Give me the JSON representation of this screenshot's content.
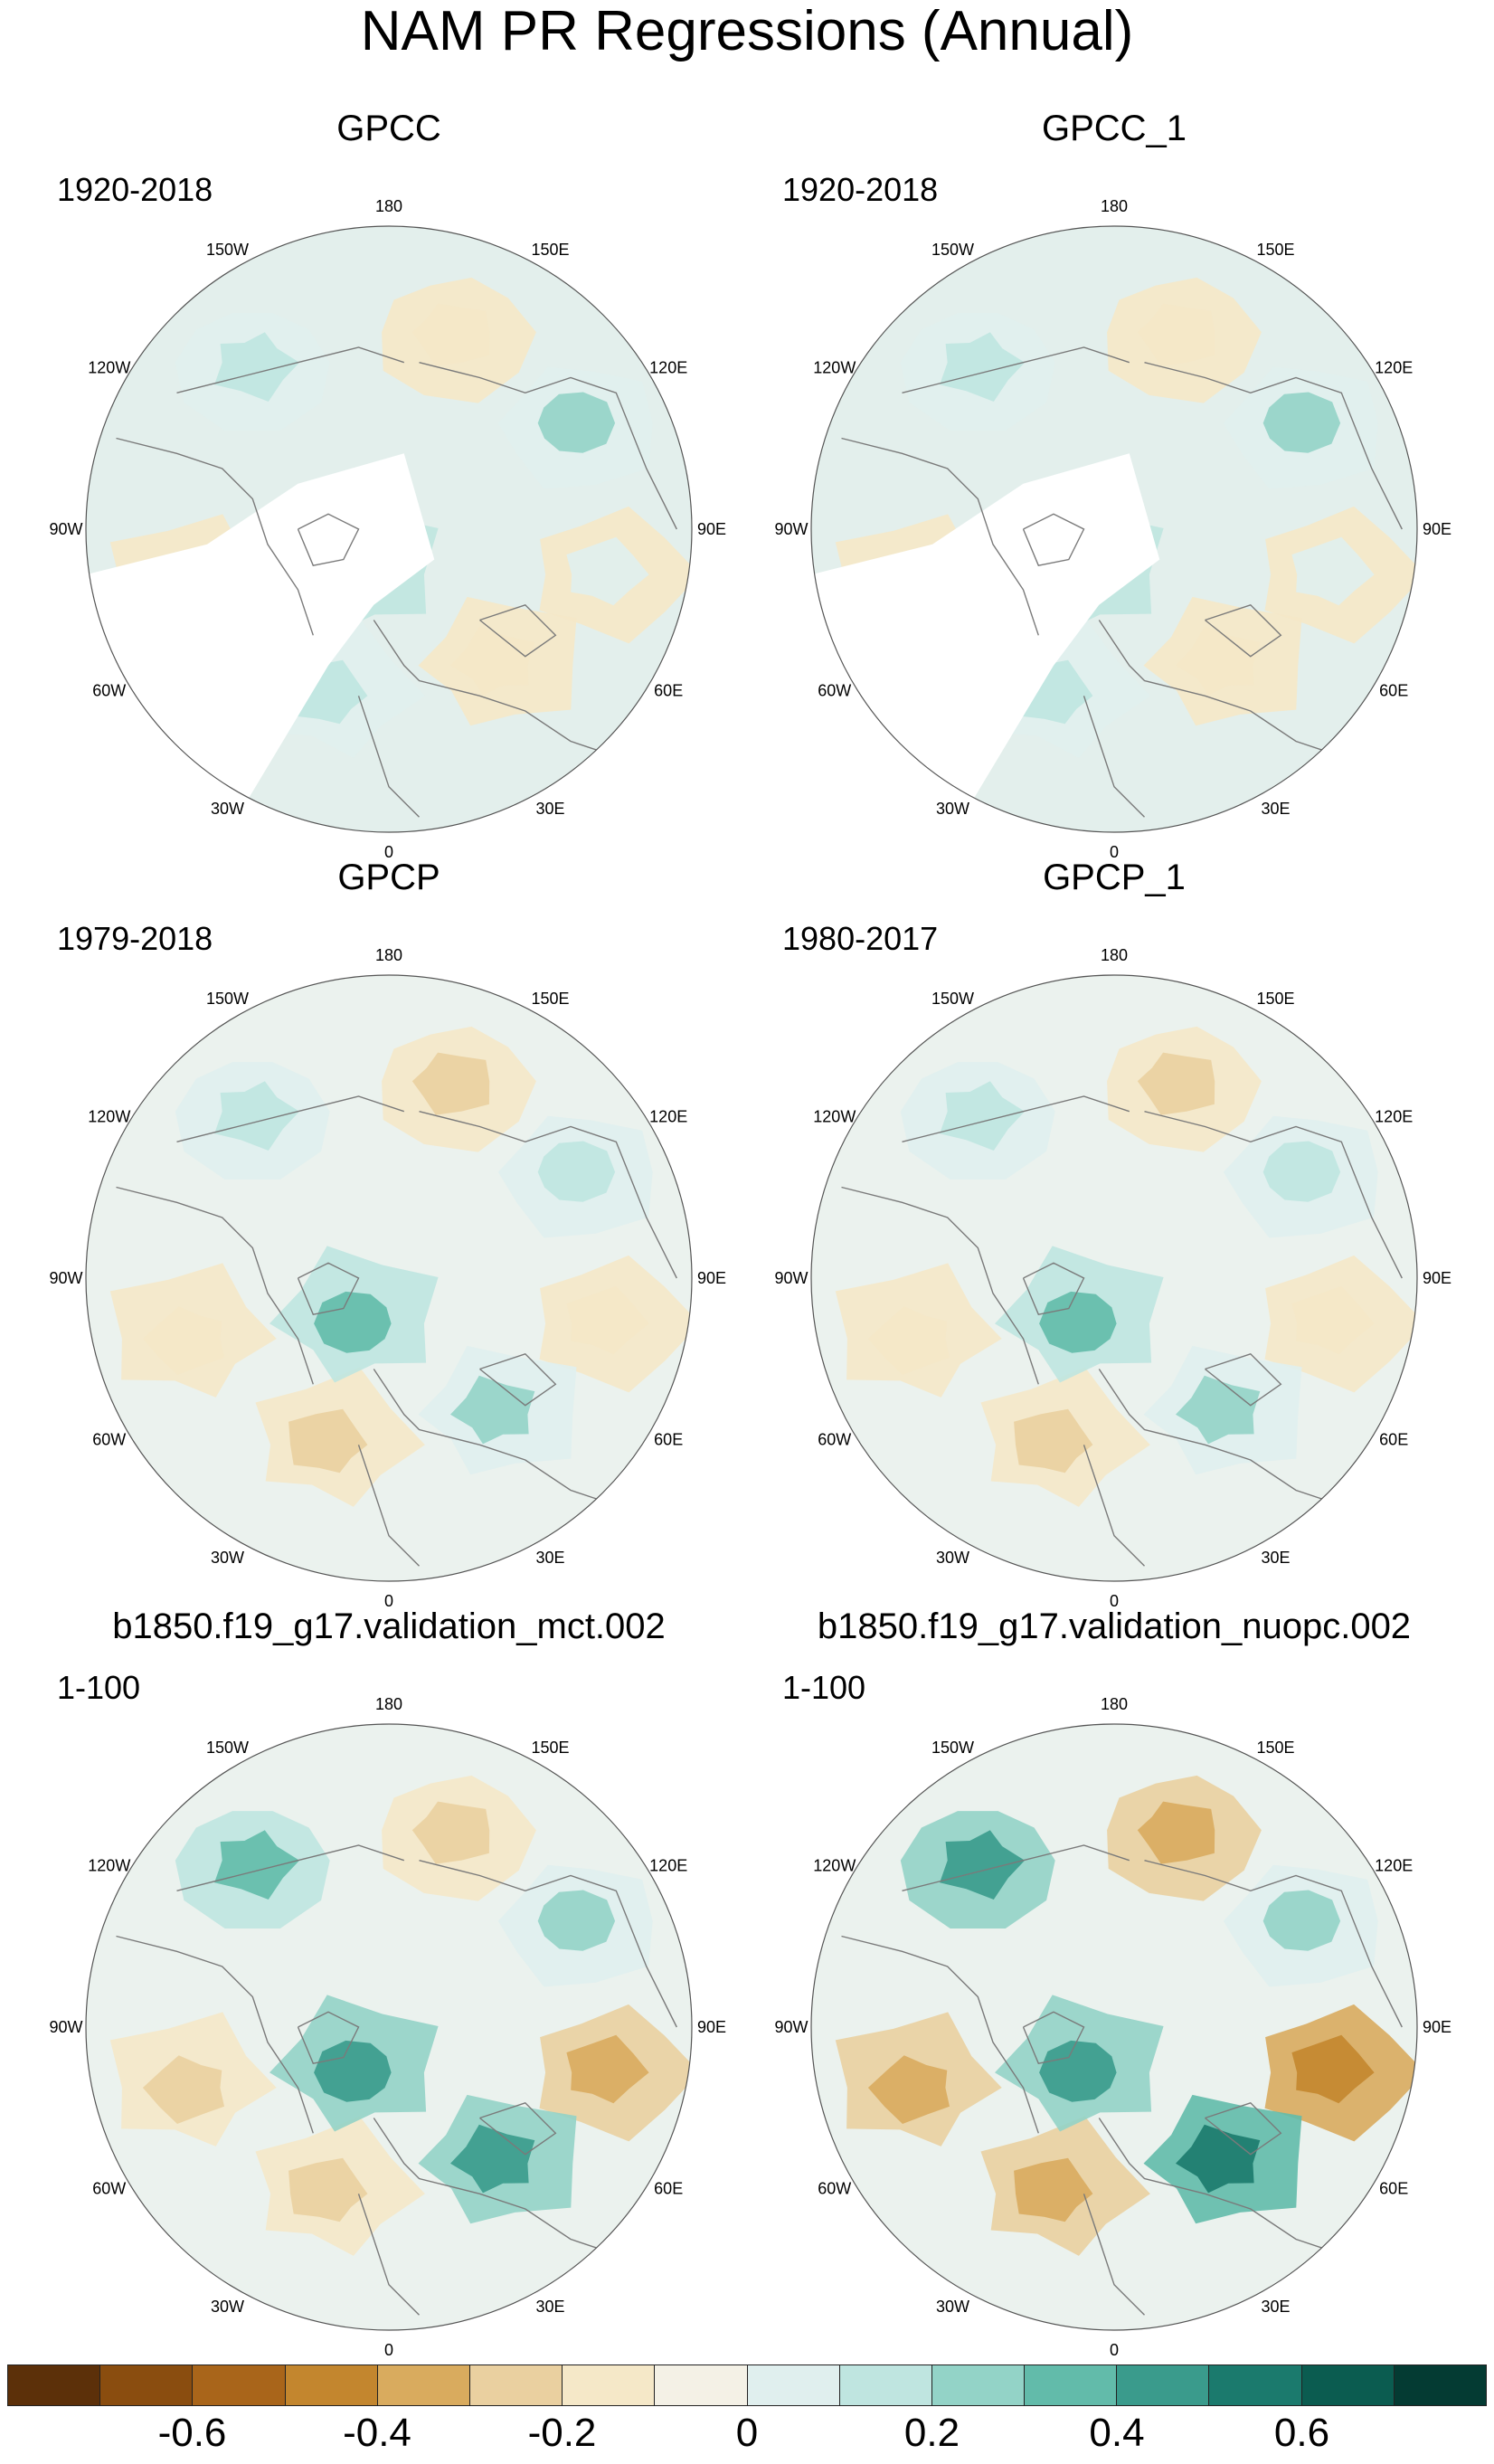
{
  "title": "NAM PR Regressions (Annual)",
  "colors": {
    "levels": [
      "#5c3009",
      "#8a4d0f",
      "#a9651a",
      "#c3862e",
      "#d9ab5e",
      "#ead0a0",
      "#f5e8c8",
      "#f4f1e6",
      "#e0efee",
      "#bfe5e0",
      "#93d3c7",
      "#62bbaa",
      "#3a9b8c",
      "#1b7a6d",
      "#0b5c50",
      "#043b33"
    ],
    "land": "#7a7a7a",
    "missing": "#ffffff"
  },
  "colorbar": {
    "labels": [
      {
        "text": "-0.6",
        "position": 0.125
      },
      {
        "text": "-0.4",
        "position": 0.25
      },
      {
        "text": "-0.2",
        "position": 0.375
      },
      {
        "text": "0",
        "position": 0.5
      },
      {
        "text": "0.2",
        "position": 0.625
      },
      {
        "text": "0.4",
        "position": 0.75
      },
      {
        "text": "0.6",
        "position": 0.875
      }
    ]
  },
  "longitude_labels": [
    "180",
    "150E",
    "120E",
    "90E",
    "60E",
    "30E",
    "0",
    "30W",
    "60W",
    "90W",
    "120W",
    "150W"
  ],
  "panels": [
    {
      "title": "GPCC",
      "period": "1920-2018",
      "style": "sparse",
      "pattern": [
        1,
        -1,
        2,
        0,
        -1,
        1,
        3,
        -1
      ]
    },
    {
      "title": "GPCC_1",
      "period": "1920-2018",
      "style": "sparse",
      "pattern": [
        1,
        -1,
        2,
        0,
        -1,
        1,
        3,
        -1
      ]
    },
    {
      "title": "GPCP",
      "period": "1979-2018",
      "style": "full",
      "pattern": [
        1,
        -2,
        1,
        -1,
        2,
        -2,
        3,
        -1
      ]
    },
    {
      "title": "GPCP_1",
      "period": "1980-2017",
      "style": "full",
      "pattern": [
        1,
        -2,
        1,
        -1,
        2,
        -2,
        3,
        -1
      ]
    },
    {
      "title": "b1850.f19_g17.validation_mct.002",
      "period": "1-100",
      "style": "model",
      "pattern": [
        3,
        -2,
        2,
        -3,
        4,
        -2,
        4,
        -2
      ]
    },
    {
      "title": "b1850.f19_g17.validation_nuopc.002",
      "period": "1-100",
      "style": "model",
      "pattern": [
        4,
        -3,
        2,
        -4,
        5,
        -3,
        4,
        -3
      ]
    }
  ]
}
